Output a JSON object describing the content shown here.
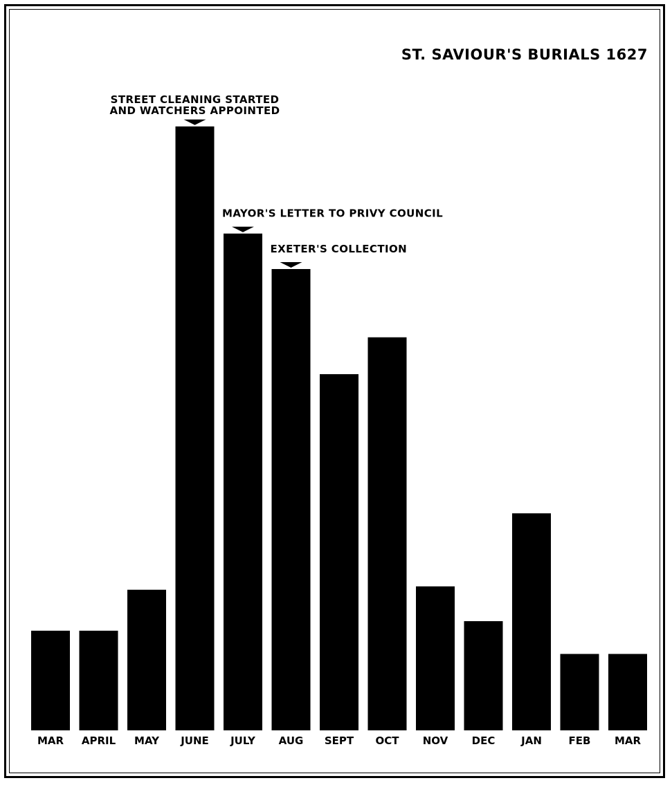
{
  "chart_data": {
    "type": "bar",
    "title": "ST. SAVIOUR'S BURIALS 1627",
    "xlabel": "",
    "ylabel": "",
    "categories": [
      "MAR",
      "APRIL",
      "MAY",
      "JUNE",
      "JULY",
      "AUG",
      "SEPT",
      "OCT",
      "NOV",
      "DEC",
      "JAN",
      "FEB",
      "MAR"
    ],
    "values": [
      146,
      146,
      206,
      885,
      728,
      676,
      522,
      576,
      211,
      160,
      318,
      112,
      112
    ],
    "ylim": [
      0,
      900
    ],
    "grid": false,
    "legend": "none",
    "bar_color": "#000000",
    "annotations": [
      {
        "category_index": 3,
        "lines": [
          "STREET CLEANING STARTED",
          "AND WATCHERS APPOINTED"
        ]
      },
      {
        "category_index": 4,
        "lines": [
          "MAYOR'S LETTER TO PRIVY COUNCIL"
        ]
      },
      {
        "category_index": 5,
        "lines": [
          "EXETER'S COLLECTION"
        ]
      }
    ]
  }
}
